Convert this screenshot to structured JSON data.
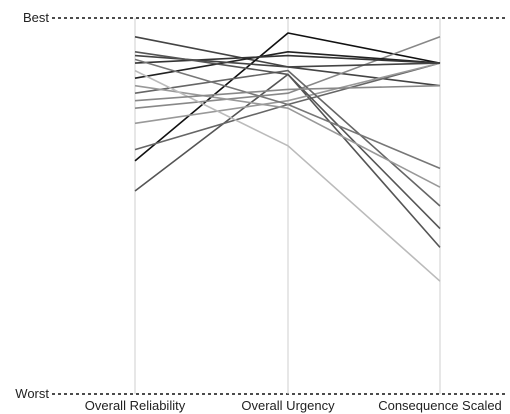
{
  "chart_data": {
    "type": "parallel-coordinates",
    "axes": [
      "Overall Reliability",
      "Overall Urgency",
      "Consequence Scaled"
    ],
    "y_scale": {
      "top_label": "Best",
      "bottom_label": "Worst",
      "min": 0,
      "max": 1
    },
    "grid": false,
    "series": [
      {
        "values": [
          0.54,
          0.85,
          0.39
        ],
        "color": "#555555"
      },
      {
        "values": [
          0.95,
          0.87,
          0.82
        ],
        "color": "#444444"
      },
      {
        "values": [
          0.62,
          0.96,
          0.88
        ],
        "color": "#111111"
      },
      {
        "values": [
          0.65,
          0.77,
          0.88
        ],
        "color": "#666666"
      },
      {
        "values": [
          0.72,
          0.78,
          0.88
        ],
        "color": "#999999"
      },
      {
        "values": [
          0.76,
          0.8,
          0.95
        ],
        "color": "#888888"
      },
      {
        "values": [
          0.8,
          0.86,
          0.5
        ],
        "color": "#666666"
      },
      {
        "values": [
          0.84,
          0.91,
          0.88
        ],
        "color": "#222222"
      },
      {
        "values": [
          0.88,
          0.9,
          0.88
        ],
        "color": "#333333"
      },
      {
        "values": [
          0.9,
          0.87,
          0.88
        ],
        "color": "#444444"
      },
      {
        "values": [
          0.91,
          0.85,
          0.44
        ],
        "color": "#555555"
      },
      {
        "values": [
          0.89,
          0.77,
          0.6
        ],
        "color": "#777777"
      },
      {
        "values": [
          0.82,
          0.76,
          0.55
        ],
        "color": "#999999"
      },
      {
        "values": [
          0.86,
          0.66,
          0.3
        ],
        "color": "#bbbbbb"
      },
      {
        "values": [
          0.78,
          0.81,
          0.82
        ],
        "color": "#888888"
      }
    ]
  }
}
